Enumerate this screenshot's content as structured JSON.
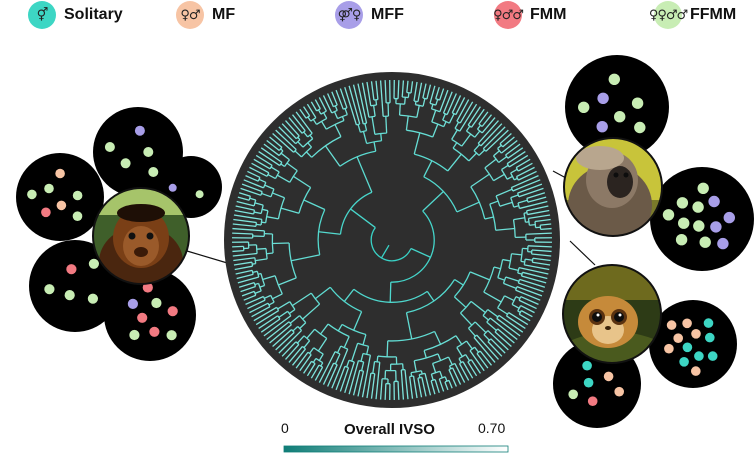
{
  "legend": {
    "items": [
      {
        "key": "solitary",
        "label": "Solitary",
        "symbol": "⚥",
        "color": "#3dd6c4"
      },
      {
        "key": "mf",
        "label": "MF",
        "symbol": "♀♂",
        "color": "#f7c4a4"
      },
      {
        "key": "mff",
        "label": "MFF",
        "symbol": "⚤♀",
        "color": "#a89ee8"
      },
      {
        "key": "fmm",
        "label": "FMM",
        "symbol": "♀♂♂",
        "color": "#f27a82"
      },
      {
        "key": "ffmm",
        "label": "FFMM",
        "symbol": "♀♀♂♂",
        "color": "#c8edb4"
      }
    ]
  },
  "colorbar": {
    "title": "Overall IVSO",
    "min_label": "0",
    "max_label": "0.70",
    "color_low": "#0f7d77",
    "color_high": "#ffffff"
  },
  "colors": {
    "tree_background": "#2e2e2e",
    "branch": "#2fcfc3",
    "disc": "#000000"
  },
  "photos": [
    {
      "key": "marmoset",
      "icon": "marmoset-photo-icon"
    },
    {
      "key": "langur",
      "icon": "langur-photo-icon"
    },
    {
      "key": "loris",
      "icon": "loris-photo-icon"
    }
  ],
  "composition_groups": [
    {
      "photo": "marmoset",
      "discs": [
        {
          "dots": [
            "ffmm",
            "ffmm",
            "mff",
            "ffmm",
            "ffmm"
          ]
        },
        {
          "dots": [
            "ffmm",
            "mff"
          ]
        },
        {
          "dots": [
            "mf",
            "ffmm",
            "ffmm",
            "fmm",
            "mf",
            "ffmm",
            "ffmm"
          ]
        },
        {
          "dots": [
            "ffmm",
            "fmm",
            "ffmm",
            "ffmm",
            "ffmm"
          ]
        },
        {
          "dots": [
            "fmm",
            "ffmm",
            "fmm",
            "mff",
            "fmm",
            "ffmm",
            "fmm",
            "ffmm"
          ]
        }
      ]
    },
    {
      "photo": "langur",
      "discs": [
        {
          "dots": [
            "ffmm",
            "mff",
            "ffmm",
            "mff",
            "ffmm",
            "ffmm",
            "ffmm"
          ]
        },
        {
          "dots": [
            "ffmm",
            "ffmm",
            "mff",
            "ffmm",
            "mff",
            "ffmm",
            "ffmm",
            "mff",
            "ffmm",
            "ffmm",
            "mff",
            "ffmm"
          ]
        }
      ]
    },
    {
      "photo": "loris",
      "discs": [
        {
          "dots": [
            "solitary",
            "mf",
            "solitary",
            "mf",
            "solitary",
            "solitary",
            "mf",
            "solitary",
            "mf",
            "solitary",
            "mf",
            "mf"
          ]
        },
        {
          "dots": [
            "solitary",
            "mf",
            "fmm",
            "solitary",
            "mf",
            "ffmm",
            "solitary"
          ]
        }
      ]
    }
  ]
}
